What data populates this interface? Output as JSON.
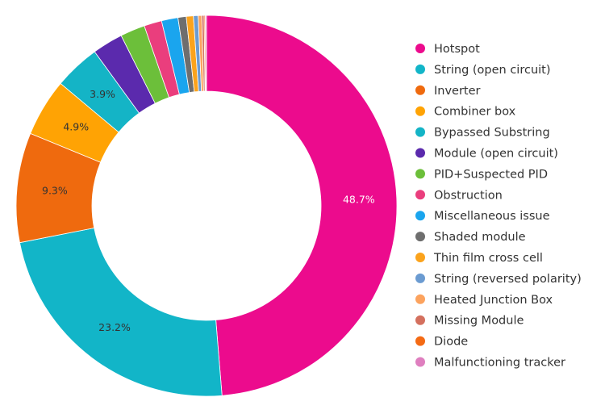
{
  "chart_data": {
    "type": "pie",
    "variant": "donut",
    "legend_position": "right",
    "categories": [
      "Hotspot",
      "String (open circuit)",
      "Inverter",
      "Combiner box",
      "Bypassed Substring",
      "Module (open circuit)",
      "PID+Suspected PID",
      "Obstruction",
      "Miscellaneous issue",
      "Shaded module",
      "Thin film cross cell",
      "String (reversed polarity)",
      "Heated Junction Box",
      "Missing Module",
      "Diode",
      "Malfunctioning tracker"
    ],
    "values": [
      48.7,
      23.2,
      9.3,
      4.9,
      3.9,
      2.6,
      2.1,
      1.5,
      1.4,
      0.7,
      0.6,
      0.4,
      0.3,
      0.2,
      0.1,
      0.1
    ],
    "data_labels": [
      "48.7%",
      "23.2%",
      "9.3%",
      "4.9%",
      "3.9%",
      "",
      "",
      "",
      "",
      "",
      "",
      "",
      "",
      "",
      "",
      ""
    ],
    "colors": [
      "#ec0b8d",
      "#12b5c8",
      "#ef6a0e",
      "#ffa304",
      "#14b4c6",
      "#5b2aad",
      "#6cbf3a",
      "#ea3e7d",
      "#1aa5ee",
      "#6e6e6e",
      "#fba31c",
      "#6b9bd1",
      "#fca35e",
      "#d4705e",
      "#f46a14",
      "#df7fbf"
    ],
    "label_colors": [
      "#ffffff",
      "#333333",
      "#333333",
      "#333333",
      "#333333"
    ]
  }
}
